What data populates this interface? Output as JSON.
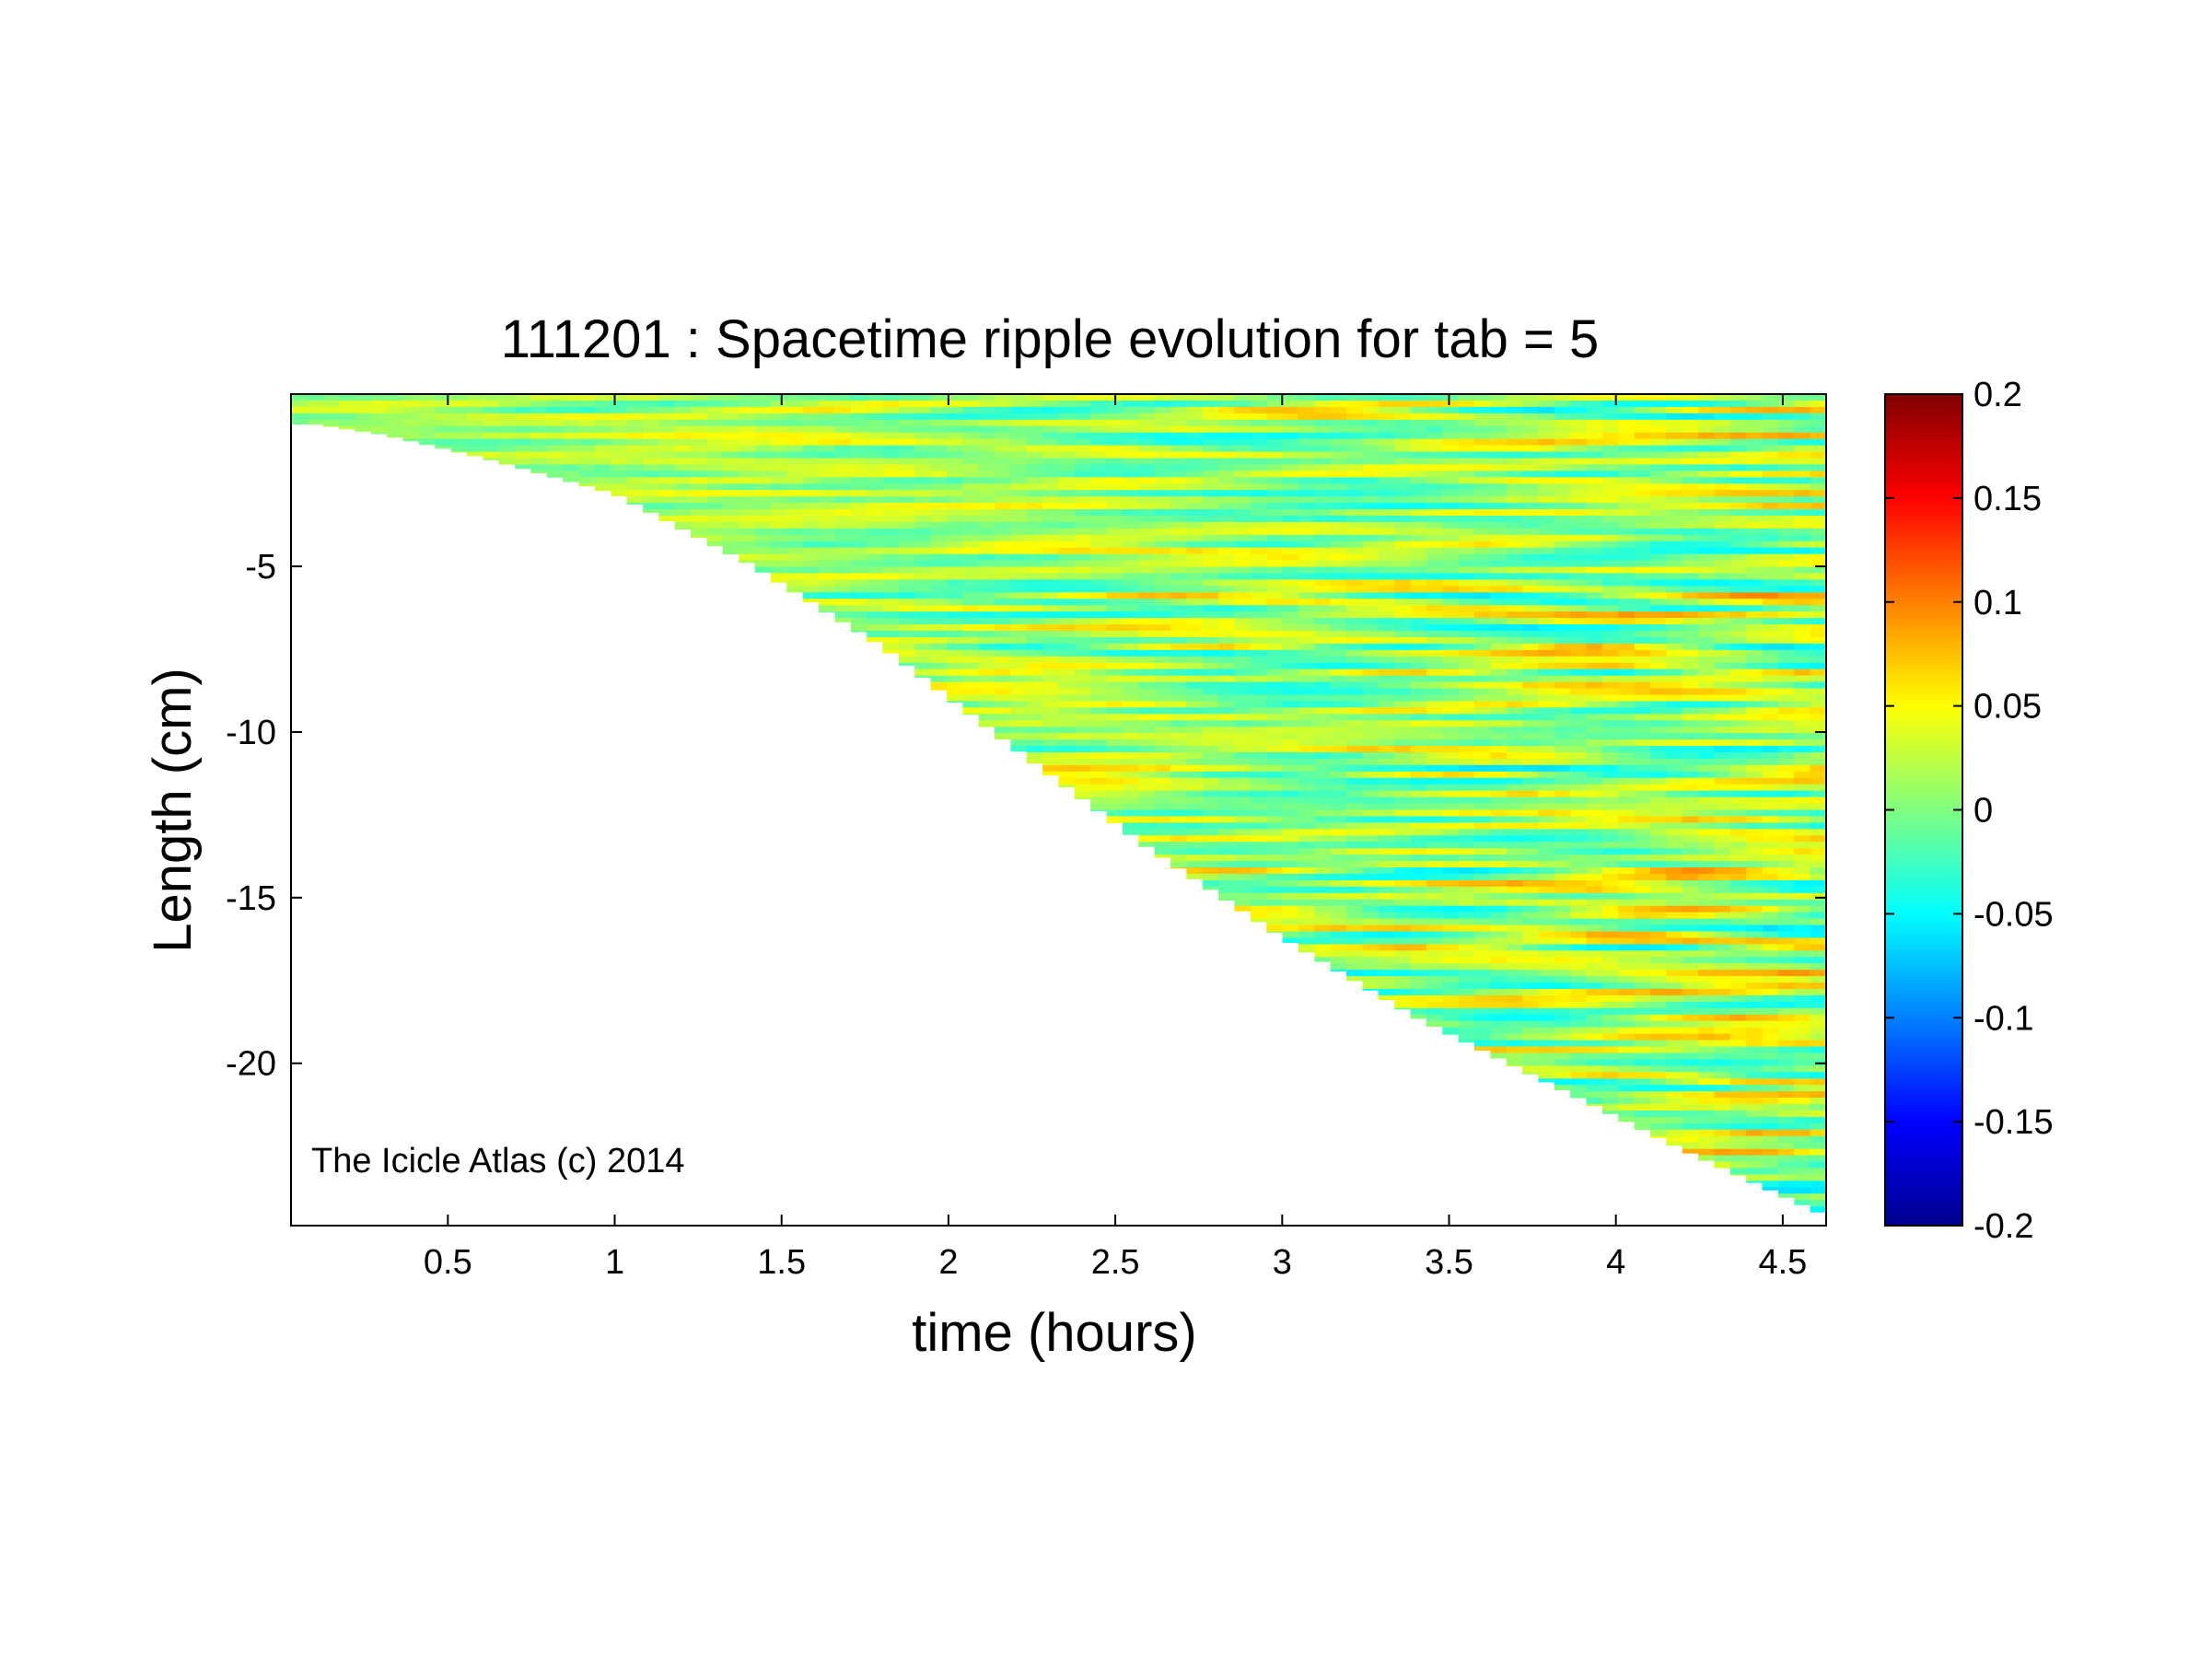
{
  "chart_data": {
    "type": "heatmap",
    "title": "111201 : Spacetime ripple evolution for tab = 5",
    "xlabel": "time (hours)",
    "ylabel": "Length (cm)",
    "xlim": [
      0.03,
      4.63
    ],
    "ylim": [
      -24.9,
      0.2
    ],
    "xticks": [
      0.5,
      1,
      1.5,
      2,
      2.5,
      3,
      3.5,
      4,
      4.5
    ],
    "xtick_labels": [
      "0.5",
      "1",
      "1.5",
      "2",
      "2.5",
      "3",
      "3.5",
      "4",
      "4.5"
    ],
    "yticks": [
      -5,
      -10,
      -15,
      -20
    ],
    "ytick_labels": [
      "-5",
      "-10",
      "-15",
      "-20"
    ],
    "colorbar": {
      "colormap": "jet",
      "range": [
        -0.2,
        0.2
      ],
      "ticks": [
        0.2,
        0.15,
        0.1,
        0.05,
        0,
        -0.05,
        -0.1,
        -0.15,
        -0.2
      ],
      "tick_labels": [
        "0.2",
        "0.15",
        "0.1",
        "0.05",
        "0",
        "-0.05",
        "-0.1",
        "-0.15",
        "-0.2"
      ],
      "colors": [
        "#00008f",
        "#0000ff",
        "#0080ff",
        "#00ffff",
        "#80ff80",
        "#ffff00",
        "#ff8000",
        "#ff0000",
        "#800000"
      ]
    },
    "boundary_curve": {
      "time": [
        0.03,
        0.1,
        0.3,
        0.6,
        1.0,
        1.4,
        1.8,
        2.2,
        2.6,
        3.0,
        3.4,
        3.8,
        4.2,
        4.63
      ],
      "length": [
        -0.7,
        -0.7,
        -1.0,
        -1.7,
        -2.8,
        -4.9,
        -7.4,
        -10.5,
        -13.5,
        -16.2,
        -18.6,
        -20.6,
        -22.6,
        -24.6
      ]
    },
    "grid": false,
    "annotation": "The Icicle Atlas (c) 2014"
  }
}
